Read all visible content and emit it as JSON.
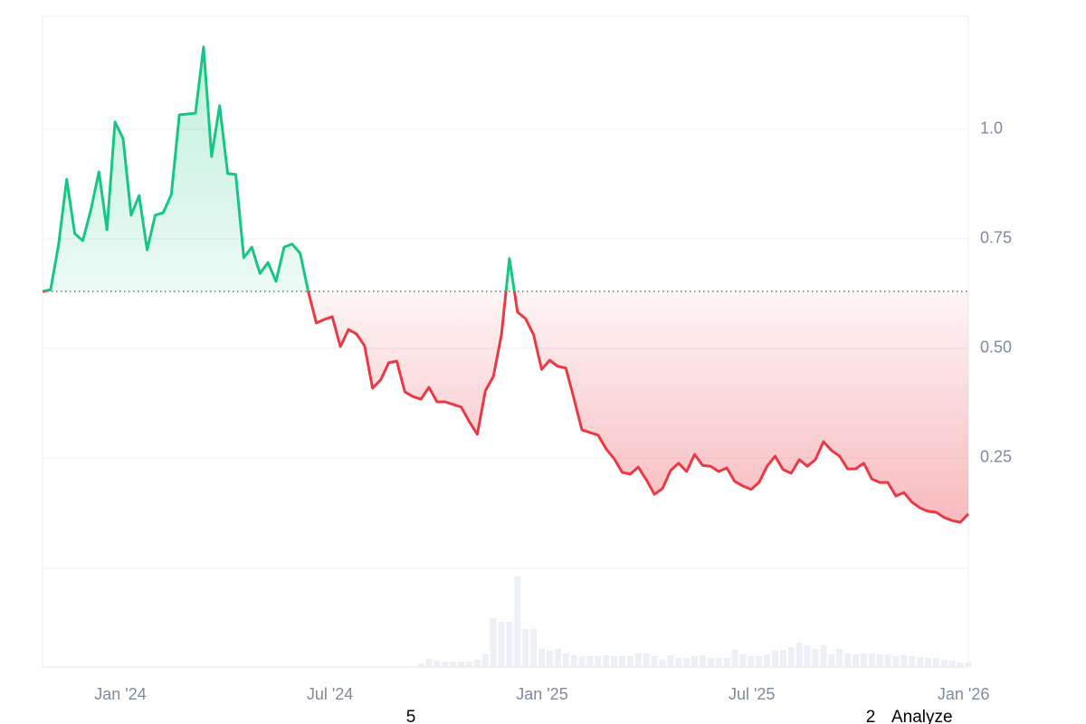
{
  "chart_data": {
    "type": "price-line",
    "values": [
      0.63,
      0.634,
      0.738,
      0.886,
      0.762,
      0.746,
      0.816,
      0.903,
      0.771,
      1.017,
      0.979,
      0.804,
      0.849,
      0.725,
      0.804,
      0.81,
      0.851,
      1.033,
      1.035,
      1.037,
      1.188,
      0.938,
      1.054,
      0.899,
      0.897,
      0.707,
      0.731,
      0.671,
      0.696,
      0.653,
      0.731,
      0.738,
      0.717,
      0.63,
      0.558,
      0.566,
      0.572,
      0.504,
      0.543,
      0.533,
      0.506,
      0.409,
      0.428,
      0.467,
      0.471,
      0.401,
      0.39,
      0.384,
      0.411,
      0.378,
      0.378,
      0.372,
      0.366,
      0.333,
      0.304,
      0.403,
      0.436,
      0.531,
      0.705,
      0.583,
      0.568,
      0.531,
      0.452,
      0.473,
      0.459,
      0.455,
      0.386,
      0.314,
      0.308,
      0.302,
      0.271,
      0.248,
      0.217,
      0.213,
      0.229,
      0.2,
      0.167,
      0.18,
      0.221,
      0.238,
      0.219,
      0.258,
      0.233,
      0.231,
      0.219,
      0.227,
      0.196,
      0.186,
      0.178,
      0.194,
      0.231,
      0.254,
      0.223,
      0.215,
      0.246,
      0.231,
      0.246,
      0.287,
      0.267,
      0.254,
      0.225,
      0.225,
      0.238,
      0.202,
      0.194,
      0.194,
      0.163,
      0.171,
      0.149,
      0.136,
      0.128,
      0.126,
      0.114,
      0.107,
      0.103,
      0.122
    ],
    "volume": [
      null,
      null,
      null,
      null,
      null,
      null,
      null,
      null,
      null,
      null,
      null,
      null,
      null,
      null,
      null,
      null,
      null,
      null,
      null,
      null,
      null,
      null,
      null,
      null,
      null,
      null,
      null,
      null,
      null,
      null,
      null,
      null,
      null,
      null,
      null,
      null,
      null,
      null,
      null,
      null,
      null,
      null,
      null,
      null,
      null,
      null,
      null,
      4,
      9,
      7,
      6,
      6,
      6,
      6,
      8,
      14,
      54,
      50,
      50,
      100,
      42,
      42,
      20,
      18,
      20,
      15,
      13,
      12,
      12,
      12,
      13,
      12,
      12,
      12,
      15,
      15,
      12,
      8,
      13,
      10,
      10,
      12,
      13,
      10,
      10,
      10,
      19,
      14,
      12,
      12,
      14,
      18,
      19,
      22,
      27,
      24,
      20,
      24,
      14,
      20,
      15,
      14,
      15,
      15,
      14,
      14,
      12,
      13,
      12,
      11,
      10,
      10,
      8,
      7,
      5,
      5
    ],
    "baseline": 0.63,
    "up_color": "#16c784",
    "down_color": "#ea3943",
    "volume_color": "#eceff3",
    "xlim": [
      0,
      115
    ],
    "xticks": [
      {
        "value": 9.67,
        "label": "Jan '24"
      },
      {
        "value": 35.7,
        "label": "Jul '24"
      },
      {
        "value": 62.05,
        "label": "Jan '25"
      },
      {
        "value": 88.1,
        "label": "Jul '25"
      },
      {
        "value": 114.4,
        "label": "Jan '26"
      }
    ],
    "ylim": [
      0,
      1.258
    ],
    "yticks": [
      0.25,
      {
        "value": 0.5,
        "label": "0.50"
      },
      0.75,
      {
        "value": 1,
        "label": "1.0"
      }
    ],
    "volume_lim": [
      0,
      109
    ],
    "grid": true
  },
  "overlay_texts": [
    "5",
    "2",
    "Analyze"
  ]
}
